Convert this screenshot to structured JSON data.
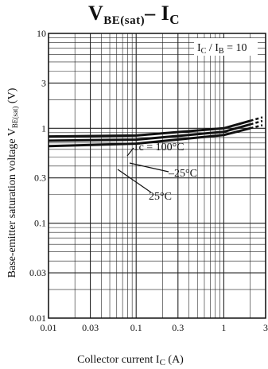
{
  "title": {
    "main": "V",
    "sub": "BE(sat)",
    "dash": "– I",
    "sub2": "C"
  },
  "chart_data": {
    "type": "line",
    "xlabel": "Collector current I_C (A)",
    "ylabel": "Base-emitter saturation voltage V_BE(sat) (V)",
    "x_scale": "log",
    "y_scale": "log",
    "xlim": [
      0.01,
      3
    ],
    "ylim": [
      0.01,
      10
    ],
    "x_ticks": [
      0.01,
      0.03,
      0.1,
      0.3,
      1,
      3
    ],
    "x_tick_labels": [
      "0.01",
      "0.03",
      "0.1",
      "0.3",
      "1",
      "3"
    ],
    "y_ticks": [
      0.01,
      0.03,
      0.1,
      0.3,
      1,
      3,
      10
    ],
    "y_tick_labels": [
      "0.01",
      "0.03",
      "0.1",
      "0.3",
      "1",
      "3",
      "10"
    ],
    "grid": true,
    "condition_label": "I_C / I_B = 10",
    "series": [
      {
        "name": "Tc = 100°C",
        "x": [
          0.01,
          0.1,
          1,
          2.0
        ],
        "y": [
          0.82,
          0.84,
          1.0,
          1.2
        ]
      },
      {
        "name": "25°C",
        "x": [
          0.01,
          0.1,
          1,
          2.0
        ],
        "y": [
          0.74,
          0.76,
          0.92,
          1.1
        ]
      },
      {
        "name": "–25°C",
        "x": [
          0.01,
          0.1,
          1,
          2.0
        ],
        "y": [
          0.65,
          0.69,
          0.85,
          1.0
        ]
      }
    ]
  }
}
